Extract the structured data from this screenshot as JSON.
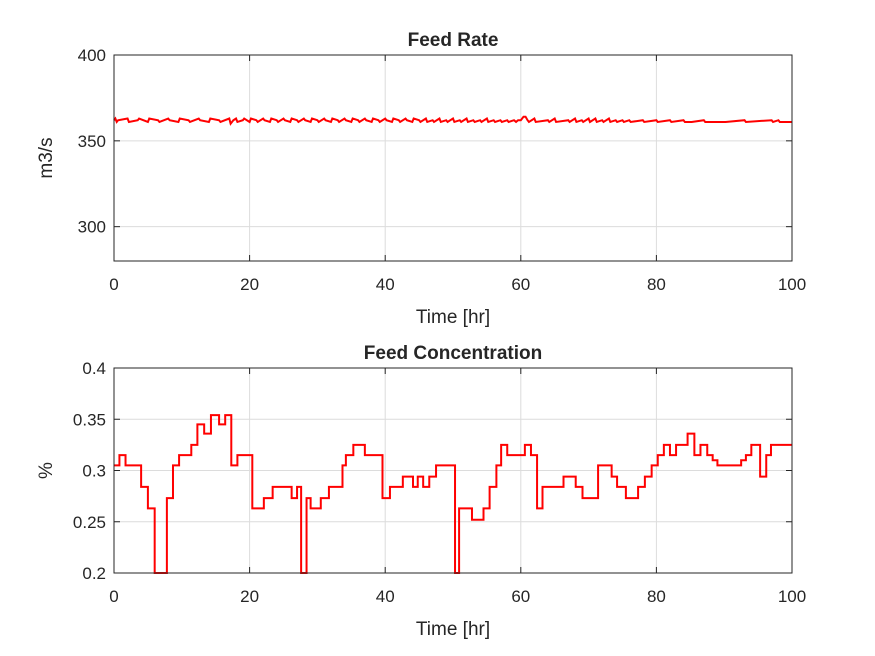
{
  "chart_data": [
    {
      "type": "line",
      "title": "Feed Rate",
      "xlabel": "Time [hr]",
      "ylabel": "m3/s",
      "xlim": [
        0,
        100
      ],
      "ylim": [
        280,
        400
      ],
      "xticks": [
        "0",
        "20",
        "40",
        "60",
        "80",
        "100"
      ],
      "xtick_values": [
        0,
        20,
        40,
        60,
        80,
        100
      ],
      "yticks": [
        "300",
        "350",
        "400"
      ],
      "ytick_values": [
        300,
        350,
        400
      ],
      "grid": true,
      "color": "#ff0000",
      "series": [
        {
          "x": [
            0,
            0.2,
            0.4,
            0.6,
            2,
            2.2,
            3.5,
            3.7,
            5,
            5.2,
            6.5,
            6.7,
            8,
            8.2,
            9.5,
            9.7,
            11,
            11.2,
            12.5,
            12.7,
            14,
            14.2,
            15.5,
            15.7,
            17,
            17.2,
            17.4,
            17.6,
            18,
            18.2,
            19,
            19.2,
            20,
            20.2,
            21,
            21.2,
            22,
            22.2,
            23,
            23.2,
            24,
            24.2,
            25,
            25.2,
            26,
            26.2,
            27,
            27.2,
            28,
            28.2,
            29,
            29.2,
            30,
            30.2,
            31,
            31.2,
            32,
            32.2,
            33,
            33.2,
            34,
            34.2,
            35,
            35.2,
            36,
            36.2,
            37,
            37.2,
            38,
            38.2,
            39,
            39.2,
            40,
            40.2,
            41,
            41.2,
            42,
            42.2,
            43,
            43.2,
            44,
            44.2,
            45,
            45.2,
            46,
            46.2,
            47,
            47.2,
            48,
            48.2,
            49,
            49.2,
            50,
            50.2,
            51,
            51.2,
            52,
            52.2,
            53,
            53.2,
            54,
            54.2,
            55,
            55.2,
            56,
            56.2,
            57,
            57.2,
            58,
            58.2,
            59,
            59.3,
            59.6,
            60,
            60.4,
            60.7,
            61,
            61.2,
            62,
            62.2,
            64,
            64.2,
            65,
            65.2,
            67,
            67.2,
            68,
            68.2,
            69,
            69.2,
            70,
            70.2,
            71,
            71.2,
            72,
            72.2,
            73,
            73.2,
            74,
            74.2,
            75,
            75.2,
            76,
            76.2,
            78,
            78.2,
            80,
            80.2,
            82,
            82.2,
            84,
            84.2,
            85,
            85.2,
            87,
            87.2,
            90,
            90.2,
            93,
            93.2,
            97,
            97.2,
            98,
            98.2,
            100
          ],
          "y": [
            362,
            363,
            361,
            362,
            363,
            361,
            362,
            363,
            361,
            363,
            362,
            361,
            363,
            362,
            361,
            363,
            362,
            361,
            363,
            362,
            361,
            363,
            362,
            361,
            363,
            360,
            361,
            362,
            363,
            361,
            362,
            363,
            361,
            363,
            362,
            361,
            363,
            362,
            361,
            363,
            362,
            361,
            363,
            362,
            361,
            363,
            362,
            361,
            363,
            362,
            361,
            363,
            362,
            361,
            363,
            362,
            361,
            363,
            362,
            361,
            363,
            362,
            361,
            363,
            362,
            361,
            363,
            362,
            361,
            363,
            362,
            361,
            363,
            362,
            361,
            363,
            362,
            361,
            363,
            362,
            361,
            363,
            362,
            361,
            363,
            361,
            362,
            361,
            363,
            361,
            362,
            361,
            363,
            361,
            362,
            361,
            363,
            361,
            362,
            361,
            362,
            361,
            363,
            361,
            362,
            361,
            362,
            361,
            362,
            361,
            362,
            361,
            362,
            362,
            364,
            364,
            362,
            361,
            363,
            361,
            362,
            361,
            363,
            361,
            362,
            361,
            363,
            361,
            362,
            361,
            363,
            361,
            363,
            361,
            362,
            361,
            363,
            361,
            362,
            361,
            362,
            361,
            362,
            361,
            362,
            361,
            362,
            361,
            362,
            361,
            362,
            361,
            361,
            361,
            362,
            361,
            361,
            361,
            362,
            361,
            362,
            361,
            362,
            361,
            361
          ]
        }
      ]
    },
    {
      "type": "line",
      "title": "Feed Concentration",
      "xlabel": "Time [hr]",
      "ylabel": "%",
      "xlim": [
        0,
        100
      ],
      "ylim": [
        0.2,
        0.4
      ],
      "xticks": [
        "0",
        "20",
        "40",
        "60",
        "80",
        "100"
      ],
      "xtick_values": [
        0,
        20,
        40,
        60,
        80,
        100
      ],
      "yticks": [
        "0.2",
        "0.25",
        "0.3",
        "0.35",
        "0.4"
      ],
      "ytick_values": [
        0.2,
        0.25,
        0.3,
        0.35,
        0.4
      ],
      "grid": true,
      "color": "#ff0000",
      "series": [
        {
          "step": true,
          "x": [
            0,
            0.8,
            1.7,
            4,
            5,
            6,
            6.8,
            7.8,
            8.7,
            9.6,
            10.2,
            11.4,
            12.3,
            13.3,
            14.3,
            15.5,
            16.4,
            17.3,
            18.2,
            20.4,
            22.1,
            23.4,
            25.2,
            26.2,
            27,
            27.6,
            28.4,
            29,
            30.5,
            31.7,
            33.7,
            34.2,
            35.3,
            37,
            39,
            39.6,
            40.7,
            42.6,
            44.1,
            44.8,
            45.6,
            46.5,
            47.5,
            50.3,
            50.9,
            52.8,
            54.5,
            55.4,
            56.4,
            57.1,
            58,
            59,
            60.6,
            61.5,
            62.4,
            63.2,
            64.2,
            66.3,
            68.1,
            69.1,
            71.4,
            73.4,
            74.2,
            75.5,
            77.3,
            78.3,
            79.3,
            80.2,
            81.1,
            82,
            82.9,
            84.6,
            85.6,
            86.5,
            87.5,
            88.3,
            89,
            90,
            92.5,
            93.2,
            94,
            95.3,
            96.2,
            96.9,
            98.5,
            100
          ],
          "y": [
            0.305,
            0.315,
            0.305,
            0.284,
            0.263,
            0.2,
            0.2,
            0.273,
            0.305,
            0.315,
            0.315,
            0.325,
            0.345,
            0.336,
            0.354,
            0.345,
            0.354,
            0.305,
            0.315,
            0.263,
            0.273,
            0.284,
            0.284,
            0.273,
            0.284,
            0.2,
            0.273,
            0.263,
            0.273,
            0.284,
            0.305,
            0.315,
            0.325,
            0.315,
            0.315,
            0.273,
            0.284,
            0.294,
            0.284,
            0.294,
            0.284,
            0.294,
            0.305,
            0.2,
            0.263,
            0.252,
            0.263,
            0.284,
            0.305,
            0.325,
            0.315,
            0.315,
            0.325,
            0.315,
            0.263,
            0.284,
            0.284,
            0.294,
            0.284,
            0.273,
            0.305,
            0.294,
            0.284,
            0.273,
            0.284,
            0.294,
            0.305,
            0.315,
            0.325,
            0.315,
            0.325,
            0.336,
            0.315,
            0.325,
            0.315,
            0.31,
            0.305,
            0.305,
            0.31,
            0.315,
            0.325,
            0.294,
            0.315,
            0.325,
            0.325,
            0.325
          ]
        }
      ]
    }
  ]
}
